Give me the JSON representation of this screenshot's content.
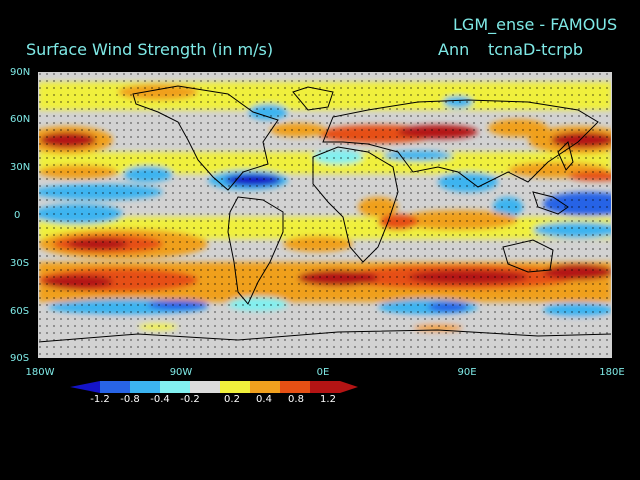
{
  "title": "Surface Wind Strength (in m/s)",
  "experiment": "LGM_ense - FAMOUS",
  "season": "Ann",
  "difference": "tcnaD-tcrpb",
  "y_axis_labels": [
    "90N",
    "60N",
    "30N",
    "0",
    "30S",
    "60S",
    "90S"
  ],
  "x_axis_labels": [
    "180W",
    "90W",
    "0E",
    "90E",
    "180E"
  ],
  "colorbar": {
    "tick_labels": [
      "-1.2",
      "-0.8",
      "-0.4",
      "-0.2",
      "0.2",
      "0.4",
      "0.8",
      "1.2"
    ],
    "colors": [
      "#1414c8",
      "#2864e6",
      "#3cb4f0",
      "#82f0f0",
      "#dcdcdc",
      "#f0f03c",
      "#f0a01e",
      "#e65014",
      "#b41414"
    ]
  },
  "map": {
    "background": "#d2d2d2",
    "land_color": "#000000"
  }
}
